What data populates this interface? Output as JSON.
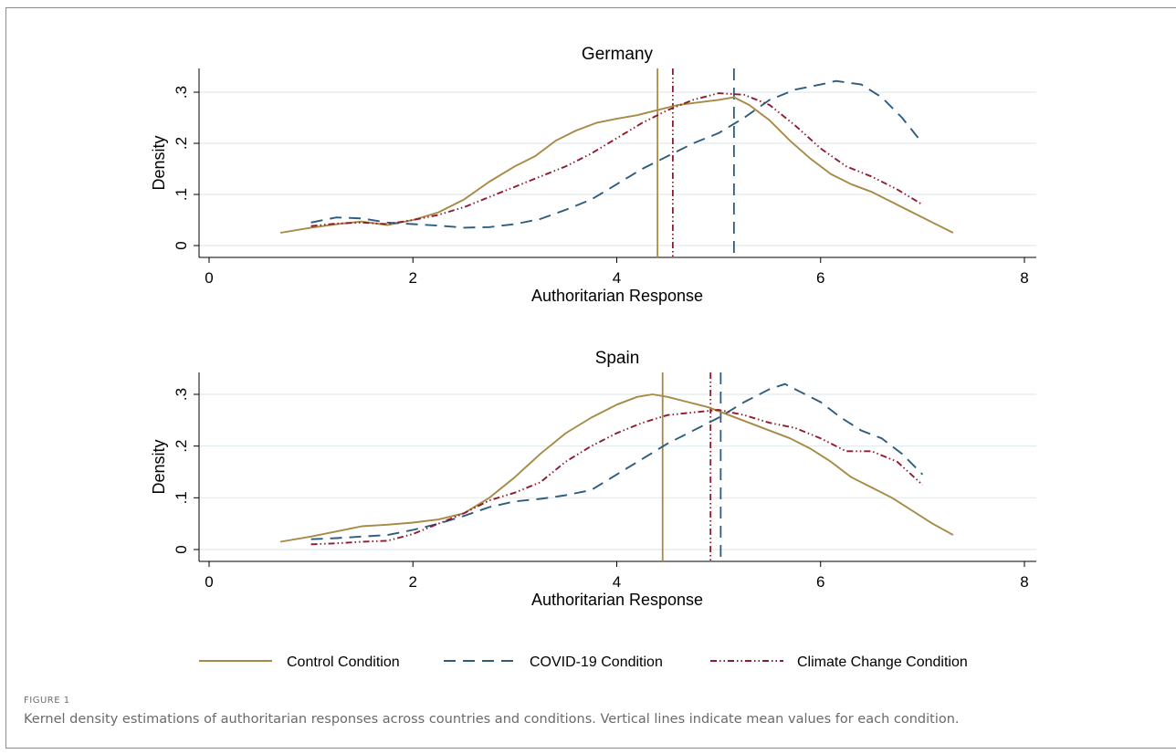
{
  "figure": {
    "label": "FIGURE 1",
    "caption": "Kernel density estimations of authoritarian responses across countries and conditions. Vertical lines indicate mean values for each condition."
  },
  "colors": {
    "control": "#a78a46",
    "covid": "#2e5c7e",
    "climate": "#8e1c2e",
    "grid": "#e1ebee"
  },
  "legend": [
    {
      "key": "control",
      "label": "Control Condition"
    },
    {
      "key": "covid",
      "label": "COVID-19 Condition"
    },
    {
      "key": "climate",
      "label": "Climate Change Condition"
    }
  ],
  "chart_data": [
    {
      "type": "line",
      "title": "Germany",
      "xlabel": "Authoritarian Response",
      "ylabel": "Density",
      "xlim": [
        0,
        8
      ],
      "ylim": [
        0,
        0.3
      ],
      "xticks": [
        0,
        2,
        4,
        6,
        8
      ],
      "xtick_labels": [
        "0",
        "2",
        "4",
        "6",
        "8"
      ],
      "yticks": [
        0,
        0.1,
        0.2,
        0.3
      ],
      "ytick_labels": [
        "0",
        ".1",
        ".2",
        ".3"
      ],
      "grid": true,
      "means": {
        "control": 4.4,
        "climate": 4.55,
        "covid": 5.15
      },
      "series": [
        {
          "name": "Control Condition",
          "key": "control",
          "x": [
            0.7,
            1.0,
            1.3,
            1.5,
            1.75,
            2.0,
            2.25,
            2.5,
            2.75,
            3.0,
            3.2,
            3.4,
            3.6,
            3.8,
            4.0,
            4.2,
            4.4,
            4.6,
            4.8,
            5.0,
            5.15,
            5.3,
            5.5,
            5.7,
            5.9,
            6.1,
            6.3,
            6.5,
            6.7,
            6.9,
            7.1,
            7.3
          ],
          "y": [
            0.025,
            0.035,
            0.043,
            0.047,
            0.04,
            0.05,
            0.065,
            0.09,
            0.125,
            0.155,
            0.175,
            0.205,
            0.225,
            0.24,
            0.248,
            0.255,
            0.265,
            0.275,
            0.28,
            0.285,
            0.29,
            0.275,
            0.245,
            0.205,
            0.17,
            0.14,
            0.12,
            0.105,
            0.085,
            0.065,
            0.045,
            0.025
          ]
        },
        {
          "name": "COVID-19 Condition",
          "key": "covid",
          "x": [
            1.0,
            1.25,
            1.5,
            1.75,
            2.0,
            2.25,
            2.5,
            2.75,
            3.0,
            3.25,
            3.5,
            3.75,
            4.0,
            4.25,
            4.5,
            4.75,
            5.0,
            5.25,
            5.5,
            5.75,
            6.0,
            6.15,
            6.4,
            6.6,
            6.8,
            7.0
          ],
          "y": [
            0.045,
            0.055,
            0.053,
            0.045,
            0.042,
            0.039,
            0.035,
            0.036,
            0.042,
            0.052,
            0.07,
            0.09,
            0.12,
            0.15,
            0.175,
            0.2,
            0.22,
            0.25,
            0.285,
            0.305,
            0.315,
            0.322,
            0.315,
            0.29,
            0.25,
            0.2
          ]
        },
        {
          "name": "Climate Change Condition",
          "key": "climate",
          "x": [
            1.0,
            1.25,
            1.5,
            1.75,
            2.0,
            2.25,
            2.5,
            2.75,
            3.0,
            3.25,
            3.5,
            3.75,
            4.0,
            4.25,
            4.5,
            4.75,
            5.0,
            5.25,
            5.5,
            5.75,
            6.0,
            6.25,
            6.5,
            6.75,
            7.0
          ],
          "y": [
            0.038,
            0.043,
            0.045,
            0.042,
            0.05,
            0.06,
            0.075,
            0.095,
            0.115,
            0.135,
            0.155,
            0.18,
            0.21,
            0.24,
            0.265,
            0.285,
            0.298,
            0.295,
            0.275,
            0.235,
            0.19,
            0.155,
            0.135,
            0.11,
            0.08
          ]
        }
      ]
    },
    {
      "type": "line",
      "title": "Spain",
      "xlabel": "Authoritarian Response",
      "ylabel": "Density",
      "xlim": [
        0,
        8
      ],
      "ylim": [
        0,
        0.3
      ],
      "xticks": [
        0,
        2,
        4,
        6,
        8
      ],
      "xtick_labels": [
        "0",
        "2",
        "4",
        "6",
        "8"
      ],
      "yticks": [
        0,
        0.1,
        0.2,
        0.3
      ],
      "ytick_labels": [
        "0",
        ".1",
        ".2",
        ".3"
      ],
      "grid": true,
      "means": {
        "control": 4.45,
        "climate": 4.92,
        "covid": 5.02
      },
      "series": [
        {
          "name": "Control Condition",
          "key": "control",
          "x": [
            0.7,
            1.0,
            1.25,
            1.5,
            1.75,
            2.0,
            2.25,
            2.5,
            2.75,
            3.0,
            3.25,
            3.5,
            3.75,
            4.0,
            4.2,
            4.35,
            4.5,
            4.7,
            4.9,
            5.1,
            5.3,
            5.5,
            5.7,
            5.9,
            6.1,
            6.3,
            6.5,
            6.7,
            6.9,
            7.1,
            7.3
          ],
          "y": [
            0.015,
            0.025,
            0.035,
            0.045,
            0.048,
            0.052,
            0.058,
            0.07,
            0.1,
            0.14,
            0.185,
            0.225,
            0.255,
            0.28,
            0.295,
            0.3,
            0.295,
            0.285,
            0.275,
            0.26,
            0.245,
            0.23,
            0.215,
            0.195,
            0.17,
            0.14,
            0.12,
            0.1,
            0.075,
            0.05,
            0.028
          ]
        },
        {
          "name": "COVID-19 Condition",
          "key": "covid",
          "x": [
            1.0,
            1.25,
            1.5,
            1.75,
            2.0,
            2.25,
            2.5,
            2.75,
            3.0,
            3.25,
            3.5,
            3.75,
            4.0,
            4.25,
            4.5,
            4.75,
            5.0,
            5.25,
            5.5,
            5.65,
            5.8,
            6.0,
            6.2,
            6.4,
            6.6,
            6.8,
            7.0
          ],
          "y": [
            0.02,
            0.022,
            0.025,
            0.028,
            0.038,
            0.05,
            0.065,
            0.082,
            0.093,
            0.098,
            0.105,
            0.115,
            0.145,
            0.175,
            0.205,
            0.23,
            0.255,
            0.285,
            0.31,
            0.32,
            0.305,
            0.285,
            0.255,
            0.23,
            0.215,
            0.185,
            0.145
          ]
        },
        {
          "name": "Climate Change Condition",
          "key": "climate",
          "x": [
            1.0,
            1.25,
            1.5,
            1.75,
            2.0,
            2.25,
            2.5,
            2.75,
            3.0,
            3.25,
            3.5,
            3.75,
            4.0,
            4.25,
            4.5,
            4.75,
            5.0,
            5.25,
            5.5,
            5.75,
            6.0,
            6.25,
            6.5,
            6.75,
            7.0
          ],
          "y": [
            0.01,
            0.012,
            0.015,
            0.017,
            0.03,
            0.05,
            0.07,
            0.095,
            0.11,
            0.13,
            0.17,
            0.2,
            0.225,
            0.245,
            0.26,
            0.265,
            0.27,
            0.26,
            0.245,
            0.235,
            0.215,
            0.19,
            0.19,
            0.17,
            0.125
          ]
        }
      ]
    }
  ]
}
